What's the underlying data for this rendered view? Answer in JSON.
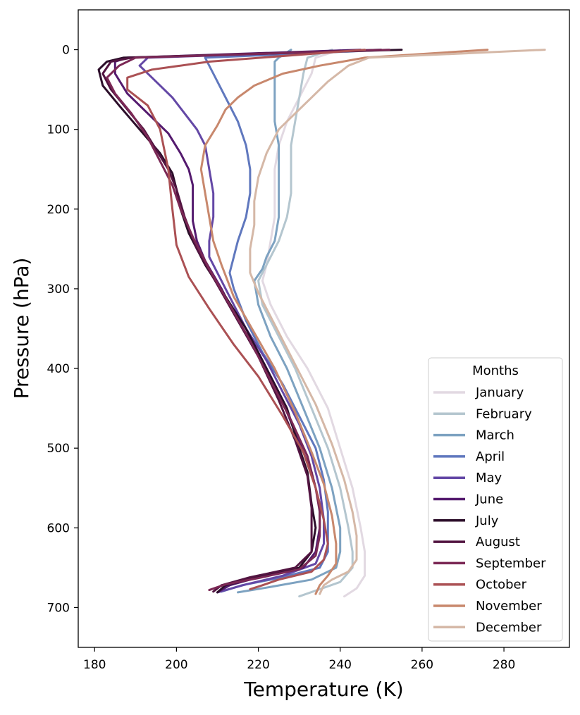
{
  "chart_data": {
    "type": "line",
    "title": "",
    "xlabel": "Temperature (K)",
    "ylabel": "Pressure (hPa)",
    "xlim": [
      176,
      296
    ],
    "ylim": [
      750,
      -50
    ],
    "y_inverted": true,
    "xticks": [
      180,
      200,
      220,
      240,
      260,
      280
    ],
    "yticks": [
      0,
      100,
      200,
      300,
      400,
      500,
      600,
      700
    ],
    "grid": false,
    "legend": {
      "title": "Months",
      "placement": "lower-right"
    },
    "series": [
      {
        "name": "January",
        "color": "#e2d9e2",
        "points": [
          [
            240,
            0
          ],
          [
            234,
            10
          ],
          [
            233,
            30
          ],
          [
            230,
            60
          ],
          [
            227,
            90
          ],
          [
            225,
            120
          ],
          [
            224,
            150
          ],
          [
            224,
            180
          ],
          [
            224,
            210
          ],
          [
            223,
            240
          ],
          [
            222,
            270
          ],
          [
            221,
            290
          ],
          [
            223,
            320
          ],
          [
            227,
            360
          ],
          [
            232,
            400
          ],
          [
            237,
            450
          ],
          [
            240,
            500
          ],
          [
            243,
            550
          ],
          [
            245,
            600
          ],
          [
            246,
            630
          ],
          [
            246,
            660
          ],
          [
            244,
            676
          ],
          [
            241,
            686
          ]
        ]
      },
      {
        "name": "February",
        "color": "#b4c6cf",
        "points": [
          [
            238,
            0
          ],
          [
            232,
            10
          ],
          [
            231,
            30
          ],
          [
            230,
            60
          ],
          [
            229,
            90
          ],
          [
            228,
            120
          ],
          [
            228,
            150
          ],
          [
            228,
            180
          ],
          [
            227,
            210
          ],
          [
            225,
            240
          ],
          [
            222,
            270
          ],
          [
            220,
            290
          ],
          [
            221,
            320
          ],
          [
            225,
            360
          ],
          [
            229,
            400
          ],
          [
            233,
            450
          ],
          [
            237,
            500
          ],
          [
            240,
            550
          ],
          [
            242,
            600
          ],
          [
            243,
            630
          ],
          [
            243,
            650
          ],
          [
            240,
            668
          ],
          [
            235,
            677
          ],
          [
            230,
            686
          ]
        ]
      },
      {
        "name": "March",
        "color": "#7da2c1",
        "points": [
          [
            228,
            0
          ],
          [
            225,
            10
          ],
          [
            224,
            15
          ],
          [
            224,
            30
          ],
          [
            224,
            60
          ],
          [
            224,
            90
          ],
          [
            225,
            120
          ],
          [
            225,
            150
          ],
          [
            225,
            180
          ],
          [
            225,
            210
          ],
          [
            224,
            240
          ],
          [
            222,
            260
          ],
          [
            221,
            275
          ],
          [
            219,
            290
          ],
          [
            220,
            320
          ],
          [
            223,
            360
          ],
          [
            227,
            400
          ],
          [
            231,
            450
          ],
          [
            235,
            500
          ],
          [
            238,
            550
          ],
          [
            240,
            600
          ],
          [
            240,
            630
          ],
          [
            239,
            650
          ],
          [
            233,
            665
          ],
          [
            222,
            675
          ],
          [
            215,
            681
          ]
        ]
      },
      {
        "name": "April",
        "color": "#6078be",
        "points": [
          [
            252,
            0
          ],
          [
            207,
            10
          ],
          [
            209,
            30
          ],
          [
            212,
            60
          ],
          [
            215,
            90
          ],
          [
            217,
            120
          ],
          [
            218,
            150
          ],
          [
            218,
            180
          ],
          [
            217,
            210
          ],
          [
            215,
            240
          ],
          [
            214,
            260
          ],
          [
            213,
            280
          ],
          [
            214,
            300
          ],
          [
            217,
            340
          ],
          [
            221,
            380
          ],
          [
            226,
            420
          ],
          [
            230,
            460
          ],
          [
            234,
            500
          ],
          [
            236,
            540
          ],
          [
            237,
            580
          ],
          [
            237,
            600
          ],
          [
            237,
            630
          ],
          [
            235,
            650
          ],
          [
            225,
            663
          ],
          [
            216,
            672
          ],
          [
            211,
            680
          ]
        ]
      },
      {
        "name": "May",
        "color": "#6448a6",
        "points": [
          [
            250,
            0
          ],
          [
            193,
            10
          ],
          [
            191,
            20
          ],
          [
            195,
            40
          ],
          [
            199,
            60
          ],
          [
            202,
            80
          ],
          [
            205,
            100
          ],
          [
            207,
            120
          ],
          [
            208,
            150
          ],
          [
            209,
            180
          ],
          [
            209,
            210
          ],
          [
            208,
            240
          ],
          [
            208,
            260
          ],
          [
            210,
            280
          ],
          [
            213,
            310
          ],
          [
            217,
            350
          ],
          [
            222,
            390
          ],
          [
            226,
            430
          ],
          [
            230,
            470
          ],
          [
            233,
            510
          ],
          [
            235,
            550
          ],
          [
            236,
            590
          ],
          [
            236,
            620
          ],
          [
            234,
            645
          ],
          [
            226,
            660
          ],
          [
            217,
            671
          ],
          [
            210,
            681
          ]
        ]
      },
      {
        "name": "June",
        "color": "#541a6e",
        "points": [
          [
            245,
            0
          ],
          [
            188,
            10
          ],
          [
            185,
            15
          ],
          [
            185,
            30
          ],
          [
            188,
            55
          ],
          [
            193,
            80
          ],
          [
            198,
            105
          ],
          [
            201,
            130
          ],
          [
            203,
            150
          ],
          [
            204,
            170
          ],
          [
            204,
            195
          ],
          [
            204,
            215
          ],
          [
            205,
            240
          ],
          [
            207,
            265
          ],
          [
            211,
            300
          ],
          [
            215,
            340
          ],
          [
            220,
            380
          ],
          [
            225,
            430
          ],
          [
            229,
            480
          ],
          [
            233,
            530
          ],
          [
            235,
            570
          ],
          [
            235,
            600
          ],
          [
            234,
            630
          ],
          [
            231,
            650
          ],
          [
            220,
            662
          ],
          [
            213,
            672
          ],
          [
            210,
            681
          ]
        ]
      },
      {
        "name": "July",
        "color": "#2c0e2a",
        "points": [
          [
            255,
            0
          ],
          [
            187,
            10
          ],
          [
            183,
            15
          ],
          [
            181,
            25
          ],
          [
            182,
            45
          ],
          [
            186,
            70
          ],
          [
            191,
            100
          ],
          [
            196,
            130
          ],
          [
            199,
            155
          ],
          [
            200,
            175
          ],
          [
            201,
            200
          ],
          [
            203,
            230
          ],
          [
            207,
            270
          ],
          [
            212,
            310
          ],
          [
            217,
            350
          ],
          [
            222,
            400
          ],
          [
            227,
            450
          ],
          [
            230,
            500
          ],
          [
            232,
            530
          ],
          [
            233,
            570
          ],
          [
            234,
            600
          ],
          [
            233,
            630
          ],
          [
            230,
            650
          ],
          [
            220,
            662
          ],
          [
            212,
            672
          ],
          [
            210,
            681
          ]
        ]
      },
      {
        "name": "August",
        "color": "#521441",
        "points": [
          [
            250,
            0
          ],
          [
            189,
            10
          ],
          [
            184,
            15
          ],
          [
            182,
            30
          ],
          [
            184,
            50
          ],
          [
            188,
            75
          ],
          [
            192,
            100
          ],
          [
            195,
            125
          ],
          [
            198,
            150
          ],
          [
            200,
            175
          ],
          [
            202,
            210
          ],
          [
            205,
            250
          ],
          [
            210,
            295
          ],
          [
            215,
            340
          ],
          [
            220,
            385
          ],
          [
            225,
            440
          ],
          [
            229,
            490
          ],
          [
            232,
            535
          ],
          [
            233,
            575
          ],
          [
            233,
            605
          ],
          [
            233,
            630
          ],
          [
            229,
            650
          ],
          [
            218,
            662
          ],
          [
            211,
            672
          ],
          [
            209,
            680
          ]
        ]
      },
      {
        "name": "September",
        "color": "#7b2855",
        "points": [
          [
            252,
            0
          ],
          [
            190,
            10
          ],
          [
            186,
            20
          ],
          [
            183,
            35
          ],
          [
            185,
            55
          ],
          [
            189,
            80
          ],
          [
            193,
            110
          ],
          [
            196,
            140
          ],
          [
            199,
            170
          ],
          [
            201,
            200
          ],
          [
            204,
            235
          ],
          [
            208,
            275
          ],
          [
            213,
            320
          ],
          [
            218,
            365
          ],
          [
            223,
            415
          ],
          [
            228,
            465
          ],
          [
            232,
            510
          ],
          [
            234,
            550
          ],
          [
            235,
            580
          ],
          [
            235,
            610
          ],
          [
            234,
            635
          ],
          [
            230,
            652
          ],
          [
            220,
            663
          ],
          [
            212,
            671
          ],
          [
            208,
            678
          ]
        ]
      },
      {
        "name": "October",
        "color": "#ab5154",
        "points": [
          [
            246,
            0
          ],
          [
            208,
            15
          ],
          [
            194,
            25
          ],
          [
            188,
            35
          ],
          [
            188,
            50
          ],
          [
            193,
            70
          ],
          [
            196,
            100
          ],
          [
            198,
            150
          ],
          [
            199,
            200
          ],
          [
            200,
            245
          ],
          [
            203,
            285
          ],
          [
            208,
            325
          ],
          [
            214,
            370
          ],
          [
            220,
            410
          ],
          [
            226,
            460
          ],
          [
            231,
            505
          ],
          [
            234,
            550
          ],
          [
            236,
            590
          ],
          [
            237,
            620
          ],
          [
            236,
            640
          ],
          [
            233,
            655
          ],
          [
            225,
            665
          ],
          [
            221,
            672
          ],
          [
            218,
            677
          ]
        ]
      },
      {
        "name": "November",
        "color": "#c8886d",
        "points": [
          [
            276,
            0
          ],
          [
            246,
            10
          ],
          [
            235,
            20
          ],
          [
            226,
            30
          ],
          [
            219,
            45
          ],
          [
            215,
            60
          ],
          [
            212,
            75
          ],
          [
            210,
            95
          ],
          [
            207,
            120
          ],
          [
            206,
            150
          ],
          [
            207,
            180
          ],
          [
            208,
            210
          ],
          [
            209,
            240
          ],
          [
            211,
            270
          ],
          [
            214,
            310
          ],
          [
            219,
            355
          ],
          [
            224,
            400
          ],
          [
            229,
            455
          ],
          [
            233,
            505
          ],
          [
            236,
            545
          ],
          [
            238,
            585
          ],
          [
            239,
            620
          ],
          [
            239,
            645
          ],
          [
            237,
            660
          ],
          [
            235,
            672
          ],
          [
            234,
            683
          ]
        ]
      },
      {
        "name": "December",
        "color": "#d5b8a7",
        "points": [
          [
            290,
            0
          ],
          [
            247,
            10
          ],
          [
            242,
            20
          ],
          [
            237,
            40
          ],
          [
            233,
            60
          ],
          [
            229,
            80
          ],
          [
            225,
            100
          ],
          [
            222,
            130
          ],
          [
            220,
            160
          ],
          [
            219,
            190
          ],
          [
            219,
            220
          ],
          [
            218,
            250
          ],
          [
            218,
            280
          ],
          [
            220,
            305
          ],
          [
            224,
            345
          ],
          [
            229,
            395
          ],
          [
            234,
            445
          ],
          [
            238,
            495
          ],
          [
            241,
            540
          ],
          [
            243,
            580
          ],
          [
            244,
            610
          ],
          [
            244,
            640
          ],
          [
            242,
            655
          ],
          [
            238,
            665
          ],
          [
            236,
            672
          ],
          [
            235,
            683
          ]
        ]
      }
    ]
  }
}
